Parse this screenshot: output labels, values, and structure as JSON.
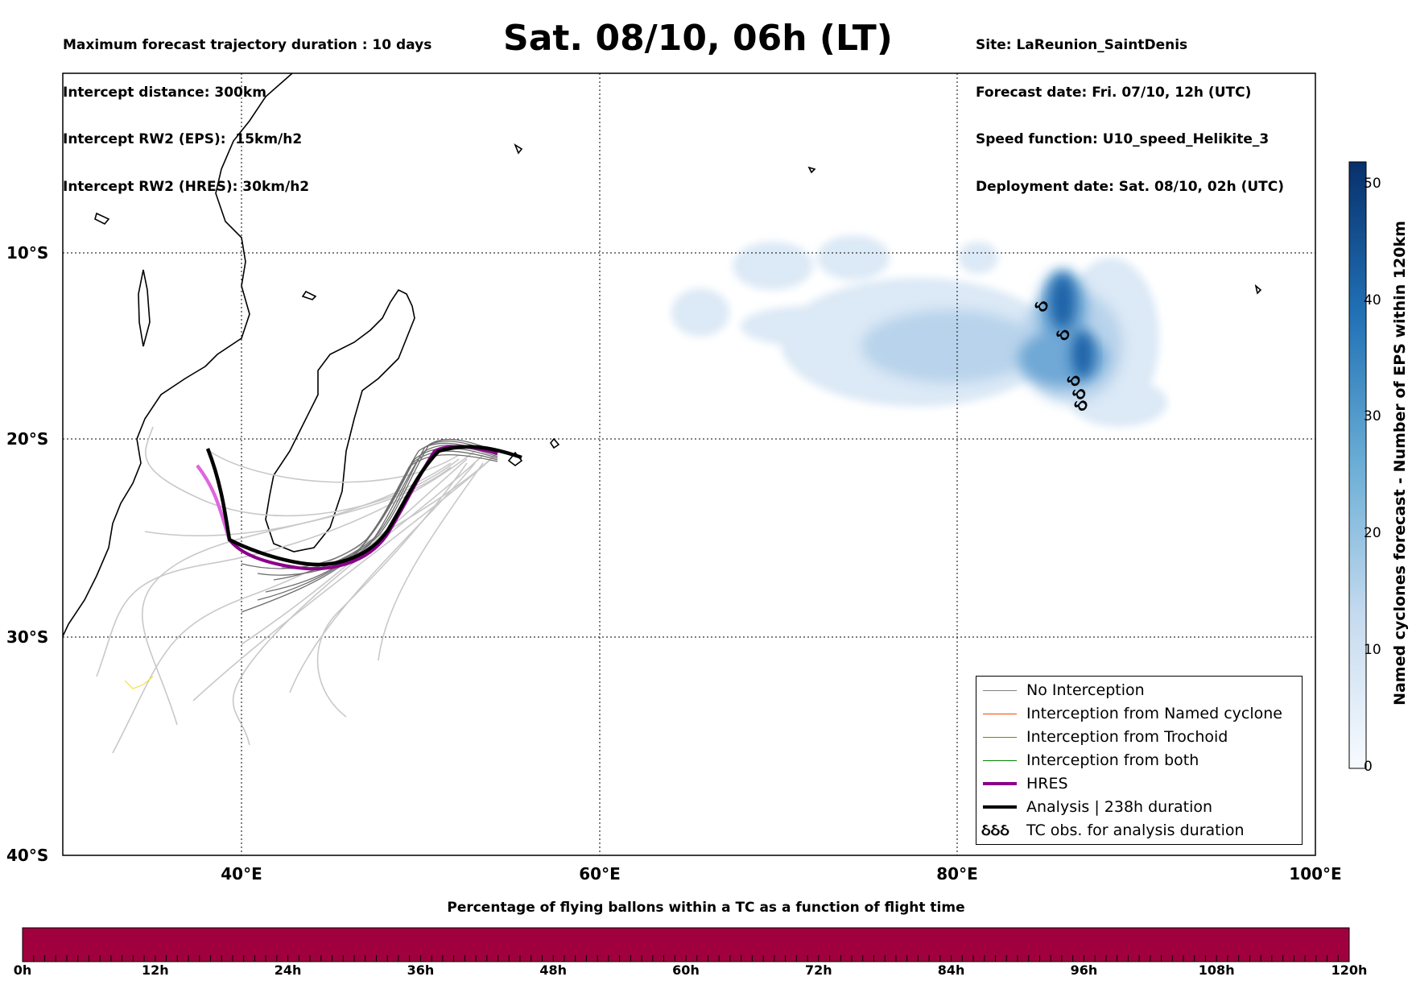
{
  "header": {
    "left_lines": [
      "Maximum forecast trajectory duration : 10 days",
      "Intercept distance: 300km",
      "Intercept RW2 (EPS):  15km/h2",
      "Intercept RW2 (HRES): 30km/h2"
    ],
    "right_lines": [
      "Site: LaReunion_SaintDenis",
      "Forecast date: Fri. 07/10, 12h (UTC)",
      "Speed function: U10_speed_Helikite_3",
      "Deployment date: Sat. 08/10, 02h (UTC)"
    ],
    "title": "Sat. 08/10, 06h (LT)"
  },
  "map": {
    "lon_range": [
      30,
      100
    ],
    "lat_range": [
      -40,
      1
    ],
    "lat_labels": [
      "10°S",
      "20°S",
      "30°S",
      "40°S"
    ],
    "lon_labels": [
      "40°E",
      "60°E",
      "80°E",
      "100°E"
    ],
    "gridlines": "dotted"
  },
  "legend": {
    "items": [
      {
        "label": "No Interception",
        "color": "#808080",
        "style": "thin-line"
      },
      {
        "label": "Interception from Named cyclone",
        "color": "#ff4500",
        "style": "thin-line"
      },
      {
        "label": "Interception from Trochoid",
        "color": "#808000",
        "style": "thin-line"
      },
      {
        "label": "Interception from both",
        "color": "#008000",
        "style": "thin-line"
      },
      {
        "label": "HRES",
        "color": "#8b008b",
        "style": "thick-line"
      },
      {
        "label": "Analysis | 238h duration",
        "color": "#000000",
        "style": "thick-line"
      },
      {
        "label": "TC obs. for analysis duration",
        "color": "#000000",
        "style": "symbol",
        "symbol": "ઠઠઠ"
      }
    ]
  },
  "colorbar": {
    "label": "Named cyclones forecast - Number of EPS within 120km",
    "ticks": [
      "0",
      "10",
      "20",
      "30",
      "40",
      "50"
    ],
    "range": [
      0,
      52
    ],
    "colormap": "Blues"
  },
  "flight_bar": {
    "title": "Percentage of flying ballons within a TC as a function of flight time",
    "ticks": [
      "0h",
      "12h",
      "24h",
      "36h",
      "48h",
      "60h",
      "72h",
      "84h",
      "96h",
      "108h",
      "120h"
    ],
    "fill_color": "#a0003e"
  },
  "tc_symbols": [
    {
      "lon": 85.0,
      "lat": -11.3
    },
    {
      "lon": 86.2,
      "lat": -12.8
    },
    {
      "lon": 86.8,
      "lat": -15.2
    },
    {
      "lon": 87.1,
      "lat": -15.9
    },
    {
      "lon": 87.2,
      "lat": -16.5
    }
  ]
}
